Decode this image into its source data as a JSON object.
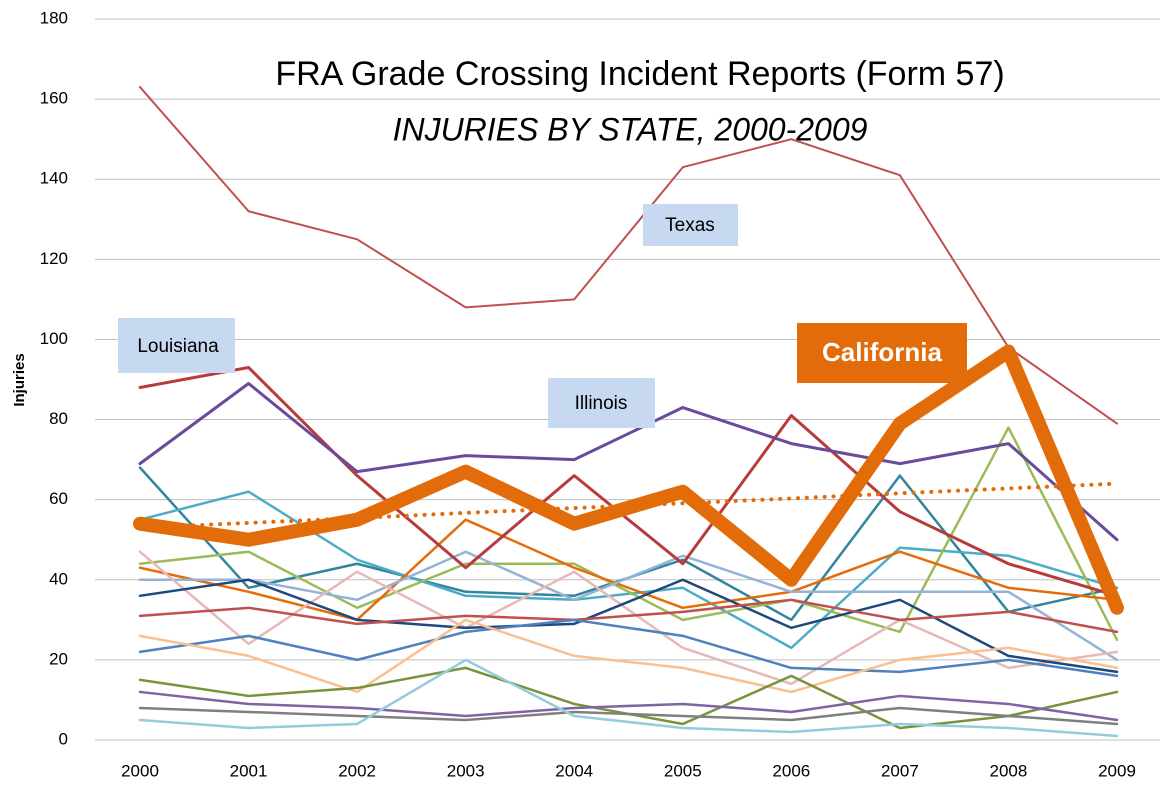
{
  "chart_data": {
    "type": "line",
    "title": "FRA Grade Crossing Incident Reports (Form 57)",
    "subtitle": "INJURIES BY STATE, 2000-2009",
    "y_label": "Injuries",
    "categories": [
      "2000",
      "2001",
      "2002",
      "2003",
      "2004",
      "2005",
      "2006",
      "2007",
      "2008",
      "2009"
    ],
    "ylim": [
      0,
      180
    ],
    "yticks": [
      0,
      20,
      40,
      60,
      80,
      100,
      120,
      140,
      160,
      180
    ],
    "grid": true,
    "series": [
      {
        "color": "#31859c",
        "values": [
          68,
          38,
          44,
          37,
          36,
          45,
          30,
          66,
          32,
          38
        ]
      },
      {
        "color": "#4bacc6",
        "values": [
          55,
          62,
          45,
          36,
          35,
          38,
          23,
          48,
          46,
          38
        ]
      },
      {
        "color": "#9bbb59",
        "values": [
          44,
          47,
          33,
          44,
          44,
          30,
          35,
          27,
          78,
          25
        ]
      },
      {
        "color": "#e46c0a",
        "values": [
          43,
          37,
          30,
          55,
          43,
          33,
          37,
          47,
          38,
          35
        ]
      },
      {
        "color": "#95b3d7",
        "values": [
          40,
          40,
          35,
          47,
          35,
          46,
          37,
          37,
          37,
          20
        ]
      },
      {
        "color": "#e6b9b8",
        "values": [
          47,
          24,
          42,
          28,
          42,
          23,
          14,
          30,
          18,
          22
        ]
      },
      {
        "color": "#1f497d",
        "values": [
          36,
          40,
          30,
          28,
          29,
          40,
          28,
          35,
          21,
          17
        ]
      },
      {
        "color": "#c0504d",
        "values": [
          31,
          33,
          29,
          31,
          30,
          32,
          35,
          30,
          32,
          27
        ]
      },
      {
        "color": "#4f81bd",
        "values": [
          22,
          26,
          20,
          27,
          30,
          26,
          18,
          17,
          20,
          16
        ]
      },
      {
        "color": "#fac090",
        "values": [
          26,
          21,
          12,
          30,
          21,
          18,
          12,
          20,
          23,
          18
        ]
      },
      {
        "color": "#77933c",
        "values": [
          15,
          11,
          13,
          18,
          9,
          4,
          16,
          3,
          6,
          12
        ]
      },
      {
        "color": "#8064a2",
        "values": [
          12,
          9,
          8,
          6,
          8,
          9,
          7,
          11,
          9,
          5
        ]
      },
      {
        "color": "#7f7f7f",
        "values": [
          8,
          7,
          6,
          5,
          7,
          6,
          5,
          8,
          6,
          4
        ]
      },
      {
        "color": "#93cddd",
        "values": [
          5,
          3,
          4,
          20,
          6,
          3,
          2,
          4,
          3,
          1
        ]
      },
      {
        "name": "Louisiana",
        "color": "#b83b3b",
        "line_width": 3,
        "values": [
          88,
          93,
          66,
          43,
          66,
          44,
          81,
          57,
          44,
          36
        ]
      },
      {
        "name": "Illinois",
        "color": "#6a4a9a",
        "line_width": 3,
        "values": [
          69,
          89,
          67,
          71,
          70,
          83,
          74,
          69,
          74,
          50
        ]
      },
      {
        "color": "#e36c0a",
        "line_width": 4,
        "style": "dotted",
        "values": [
          53,
          54.2,
          55.4,
          56.7,
          57.9,
          59.1,
          60.3,
          61.6,
          62.8,
          64
        ]
      },
      {
        "name": "Texas",
        "color": "#c0504d",
        "line_width": 2,
        "values": [
          163,
          132,
          125,
          108,
          110,
          143,
          150,
          141,
          98,
          79
        ]
      },
      {
        "name": "California",
        "color": "#e36c0a",
        "line_width": 14,
        "values": [
          54,
          50,
          55,
          67,
          54,
          62,
          40,
          79,
          97,
          33
        ]
      }
    ]
  }
}
